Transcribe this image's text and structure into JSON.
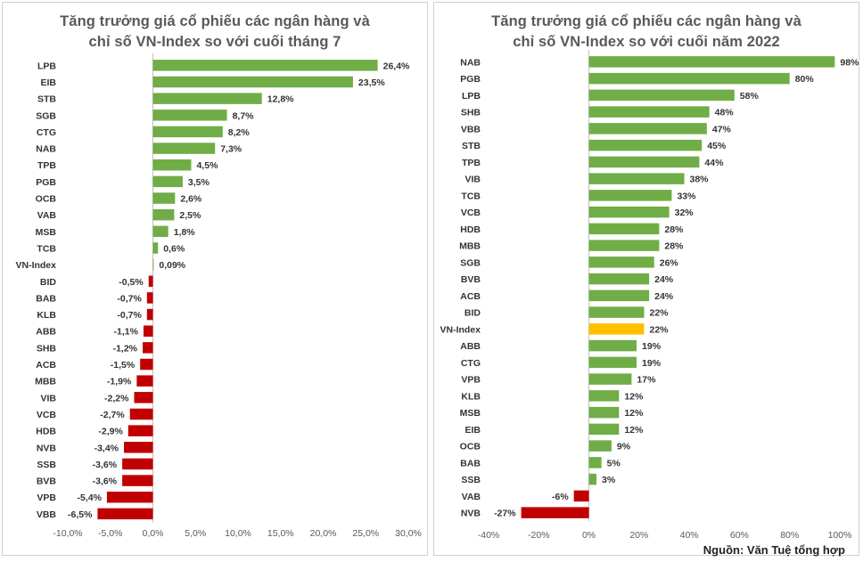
{
  "colors": {
    "positive": "#70AD47",
    "negative": "#C00000",
    "highlight": "#FFC000",
    "axis": "#bfbfbf"
  },
  "source": "Nguồn: Văn Tuệ tổng hợp",
  "chart_data": [
    {
      "type": "bar",
      "orientation": "horizontal",
      "title": "Tăng trưởng giá cổ phiếu  các ngân hàng và\nchỉ số VN-Index  so với cuối  tháng 7",
      "categories": [
        "LPB",
        "EIB",
        "STB",
        "SGB",
        "CTG",
        "NAB",
        "TPB",
        "PGB",
        "OCB",
        "VAB",
        "MSB",
        "TCB",
        "VN-Index",
        "BID",
        "BAB",
        "KLB",
        "ABB",
        "SHB",
        "ACB",
        "MBB",
        "VIB",
        "VCB",
        "HDB",
        "NVB",
        "SSB",
        "BVB",
        "VPB",
        "VBB"
      ],
      "values": [
        26.4,
        23.5,
        12.8,
        8.7,
        8.2,
        7.3,
        4.5,
        3.5,
        2.6,
        2.5,
        1.8,
        0.6,
        0.09,
        -0.5,
        -0.7,
        -0.7,
        -1.1,
        -1.2,
        -1.5,
        -1.9,
        -2.2,
        -2.7,
        -2.9,
        -3.4,
        -3.6,
        -3.6,
        -5.4,
        -6.5
      ],
      "data_labels": [
        "26,4%",
        "23,5%",
        "12,8%",
        "8,7%",
        "8,2%",
        "7,3%",
        "4,5%",
        "3,5%",
        "2,6%",
        "2,5%",
        "1,8%",
        "0,6%",
        "0,09%",
        "-0,5%",
        "-0,7%",
        "-0,7%",
        "-1,1%",
        "-1,2%",
        "-1,5%",
        "-1,9%",
        "-2,2%",
        "-2,7%",
        "-2,9%",
        "-3,4%",
        "-3,6%",
        "-3,6%",
        "-5,4%",
        "-6,5%"
      ],
      "xlim": [
        -10,
        30
      ],
      "xticks": [
        -10,
        -5,
        0,
        5,
        10,
        15,
        20,
        25,
        30
      ],
      "xtick_labels": [
        "-10,0%",
        "-5,0%",
        "0,0%",
        "5,0%",
        "10,0%",
        "15,0%",
        "20,0%",
        "25,0%",
        "30,0%"
      ],
      "grid": false
    },
    {
      "type": "bar",
      "orientation": "horizontal",
      "title": "Tăng trưởng giá cổ phiếu  các ngân hàng và\nchỉ số VN-Index  so với cuối  năm 2022",
      "categories": [
        "NAB",
        "PGB",
        "LPB",
        "SHB",
        "VBB",
        "STB",
        "TPB",
        "VIB",
        "TCB",
        "VCB",
        "HDB",
        "MBB",
        "SGB",
        "BVB",
        "ACB",
        "BID",
        "VN-Index",
        "ABB",
        "CTG",
        "VPB",
        "KLB",
        "MSB",
        "EIB",
        "OCB",
        "BAB",
        "SSB",
        "VAB",
        "NVB"
      ],
      "values": [
        98,
        80,
        58,
        48,
        47,
        45,
        44,
        38,
        33,
        32,
        28,
        28,
        26,
        24,
        24,
        22,
        22,
        19,
        19,
        17,
        12,
        12,
        12,
        9,
        5,
        3,
        -6,
        -27
      ],
      "data_labels": [
        "98%",
        "80%",
        "58%",
        "48%",
        "47%",
        "45%",
        "44%",
        "38%",
        "33%",
        "32%",
        "28%",
        "28%",
        "26%",
        "24%",
        "24%",
        "22%",
        "22%",
        "19%",
        "19%",
        "17%",
        "12%",
        "12%",
        "12%",
        "9%",
        "5%",
        "3%",
        "-6%",
        "-27%"
      ],
      "highlight": "VN-Index",
      "xlim": [
        -40,
        100
      ],
      "xticks": [
        -40,
        -20,
        0,
        20,
        40,
        60,
        80,
        100
      ],
      "xtick_labels": [
        "-40%",
        "-20%",
        "0%",
        "20%",
        "40%",
        "60%",
        "80%",
        "100%"
      ],
      "grid": false
    }
  ]
}
